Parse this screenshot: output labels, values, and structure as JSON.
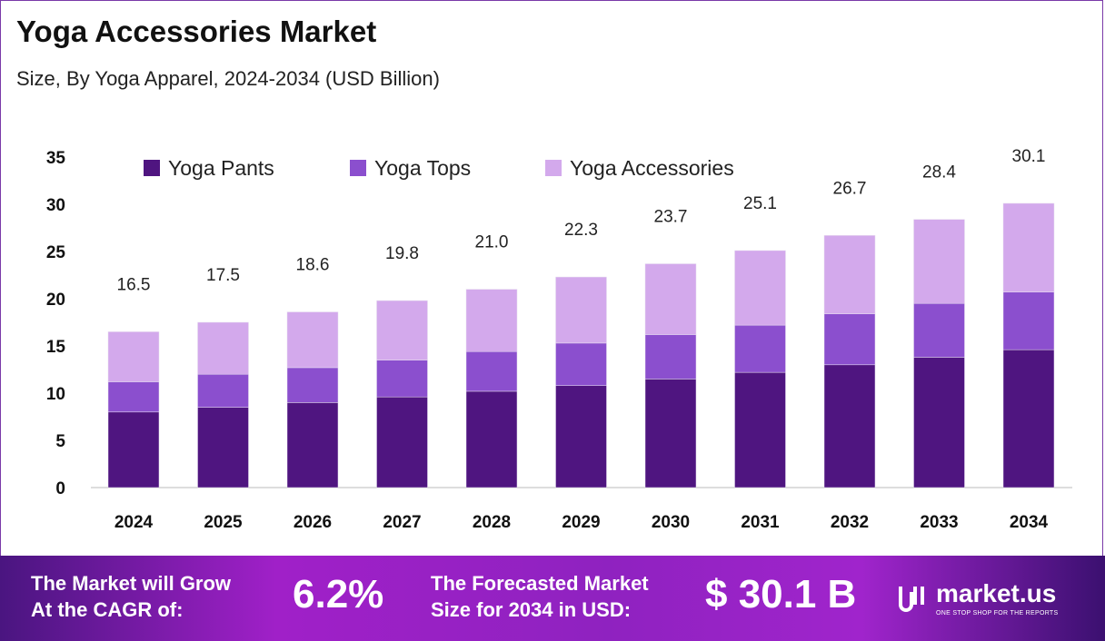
{
  "header": {
    "title": "Yoga Accessories Market",
    "subtitle": "Size, By Yoga Apparel, 2024-2034 (USD Billion)"
  },
  "chart_data": {
    "type": "bar",
    "stacked": true,
    "categories": [
      "2024",
      "2025",
      "2026",
      "2027",
      "2028",
      "2029",
      "2030",
      "2031",
      "2032",
      "2033",
      "2034"
    ],
    "series": [
      {
        "name": "Yoga Pants",
        "color": "#4f1580",
        "values": [
          8.0,
          8.5,
          9.0,
          9.6,
          10.2,
          10.8,
          11.5,
          12.2,
          13.0,
          13.8,
          14.6
        ]
      },
      {
        "name": "Yoga Tops",
        "color": "#8b4fce",
        "values": [
          3.2,
          3.5,
          3.7,
          3.9,
          4.2,
          4.5,
          4.7,
          5.0,
          5.4,
          5.7,
          6.1
        ]
      },
      {
        "name": "Yoga Accessories",
        "color": "#d3a9ec",
        "values": [
          5.3,
          5.5,
          5.9,
          6.3,
          6.6,
          7.0,
          7.5,
          7.9,
          8.3,
          8.9,
          9.4
        ]
      }
    ],
    "totals": [
      "16.5",
      "17.5",
      "18.6",
      "19.8",
      "21.0",
      "22.3",
      "23.7",
      "25.1",
      "26.7",
      "28.4",
      "30.1"
    ],
    "yticks": [
      "0",
      "5",
      "10",
      "15",
      "20",
      "25",
      "30",
      "35"
    ],
    "ylim": [
      0,
      35
    ],
    "grid": false,
    "legend": "top"
  },
  "banner": {
    "cagr_label_1": "The Market will Grow",
    "cagr_label_2": "At the CAGR of:",
    "cagr_value": "6.2%",
    "forecast_label_1": "The Forecasted Market",
    "forecast_label_2": "Size for 2034 in USD:",
    "forecast_value": "$ 30.1 B",
    "logo_name": "market.us",
    "logo_tagline": "ONE STOP SHOP FOR THE REPORTS"
  }
}
